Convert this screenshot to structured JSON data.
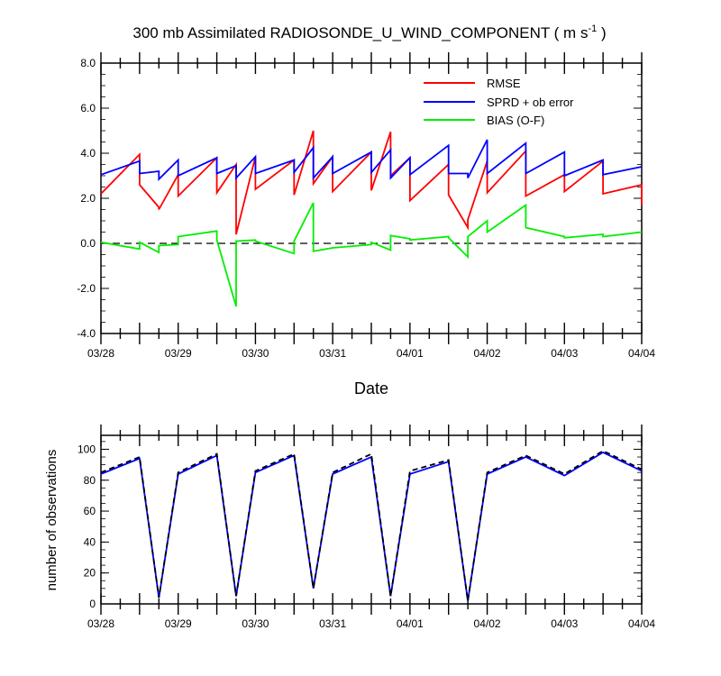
{
  "chart_data": [
    {
      "type": "line",
      "title": "300 mb Assimilated RADIOSONDE_U_WIND_COMPONENT ( m s",
      "title_superscript": "-1",
      "title_suffix": " )",
      "xlabel": "Date",
      "ylabel": "",
      "xlim": [
        0,
        168
      ],
      "ylim": [
        -4,
        8
      ],
      "yticks": [
        -4,
        -2,
        0,
        2,
        4,
        6,
        8
      ],
      "ytick_labels": [
        "-4.0",
        "-2.0",
        "0.0",
        "2.0",
        "4.0",
        "6.0",
        "8.0"
      ],
      "xtick_hours": [
        0,
        24,
        48,
        72,
        96,
        120,
        144,
        168
      ],
      "xtick_labels": [
        "03/28",
        "03/29",
        "03/30",
        "03/31",
        "04/01",
        "04/02",
        "04/03",
        "04/04"
      ],
      "legend_placement": "top-right",
      "zero_line": "dashed",
      "series": [
        {
          "name": "RMSE",
          "color": "#ff0000",
          "x": [
            0,
            12,
            12,
            18,
            18,
            24,
            24,
            36,
            36,
            42,
            42,
            48,
            48,
            60,
            60,
            66,
            66,
            72,
            72,
            84,
            84,
            90,
            90,
            96,
            96,
            108,
            108,
            114,
            114,
            120,
            120,
            132,
            132,
            144,
            144,
            156,
            156,
            168,
            168
          ],
          "values": [
            2.2,
            3.95,
            2.6,
            1.6,
            1.5,
            3.05,
            2.1,
            3.8,
            2.25,
            3.5,
            0.4,
            3.85,
            2.4,
            3.7,
            2.15,
            5.0,
            2.65,
            3.85,
            2.3,
            4.05,
            2.35,
            4.95,
            3.0,
            3.8,
            1.9,
            3.5,
            2.15,
            0.7,
            1.05,
            3.65,
            2.25,
            4.1,
            2.1,
            3.05,
            2.3,
            3.65,
            2.2,
            2.6,
            1.7
          ]
        },
        {
          "name": "SPRD + ob error",
          "color": "#0000ff",
          "x": [
            0,
            12,
            12,
            18,
            18,
            24,
            24,
            36,
            36,
            42,
            42,
            48,
            48,
            60,
            60,
            66,
            66,
            72,
            72,
            84,
            84,
            90,
            90,
            96,
            96,
            108,
            108,
            114,
            114,
            120,
            120,
            132,
            132,
            144,
            144,
            156,
            156,
            168
          ],
          "values": [
            3.05,
            3.65,
            3.1,
            3.2,
            2.85,
            3.7,
            3.0,
            3.8,
            3.1,
            3.45,
            2.9,
            3.85,
            3.1,
            3.7,
            3.15,
            4.25,
            2.9,
            3.85,
            3.1,
            4.05,
            3.15,
            4.15,
            2.9,
            3.8,
            3.05,
            4.35,
            3.1,
            3.1,
            2.9,
            4.6,
            3.1,
            4.45,
            3.1,
            4.05,
            3.0,
            3.7,
            3.05,
            3.4
          ]
        },
        {
          "name": "BIAS (O-F)",
          "color": "#00ee00",
          "x": [
            0,
            12,
            12,
            18,
            18,
            24,
            24,
            36,
            36,
            42,
            42,
            48,
            48,
            60,
            60,
            66,
            66,
            72,
            72,
            84,
            84,
            90,
            90,
            96,
            96,
            108,
            108,
            114,
            114,
            120,
            120,
            132,
            132,
            144,
            144,
            156,
            156,
            168
          ],
          "values": [
            0.05,
            -0.25,
            0.05,
            -0.4,
            -0.1,
            -0.05,
            0.3,
            0.55,
            0.15,
            -2.8,
            0.1,
            0.15,
            0.1,
            -0.45,
            0.1,
            1.8,
            -0.35,
            -0.2,
            -0.2,
            -0.05,
            0.05,
            -0.3,
            0.35,
            0.2,
            0.15,
            0.3,
            0.25,
            -0.6,
            0.3,
            1.0,
            0.5,
            1.7,
            0.7,
            0.3,
            0.25,
            0.4,
            0.3,
            0.5
          ]
        }
      ]
    },
    {
      "type": "line",
      "title": "",
      "xlabel": "",
      "ylabel": "number of observations",
      "xlim": [
        0,
        168
      ],
      "ylim": [
        0,
        109
      ],
      "yticks": [
        0,
        20,
        40,
        60,
        80,
        100
      ],
      "ytick_labels": [
        "0",
        "20",
        "40",
        "60",
        "80",
        "100"
      ],
      "xtick_hours": [
        0,
        24,
        48,
        72,
        96,
        120,
        144,
        168
      ],
      "xtick_labels": [
        "03/28",
        "03/29",
        "03/30",
        "03/31",
        "04/01",
        "04/02",
        "04/03",
        "04/04"
      ],
      "series": [
        {
          "color": "#0000ff",
          "style": "solid",
          "x": [
            0,
            12,
            18,
            24,
            36,
            42,
            48,
            60,
            66,
            72,
            84,
            90,
            96,
            108,
            114,
            120,
            132,
            144,
            156,
            168
          ],
          "values": [
            84,
            94,
            4,
            84,
            96,
            5,
            85,
            96,
            10,
            84,
            95,
            5,
            84,
            92,
            2,
            84,
            95,
            83,
            98,
            86
          ]
        },
        {
          "color": "#000000",
          "style": "dashed",
          "x": [
            0,
            12,
            18,
            24,
            36,
            42,
            48,
            60,
            66,
            72,
            84,
            90,
            96,
            108,
            114,
            120,
            132,
            144,
            156,
            168
          ],
          "values": [
            85,
            95,
            4,
            85,
            97,
            5,
            86,
            97,
            10,
            85,
            97,
            5,
            86,
            93,
            2,
            85,
            96,
            84,
            99,
            87
          ]
        }
      ]
    }
  ]
}
